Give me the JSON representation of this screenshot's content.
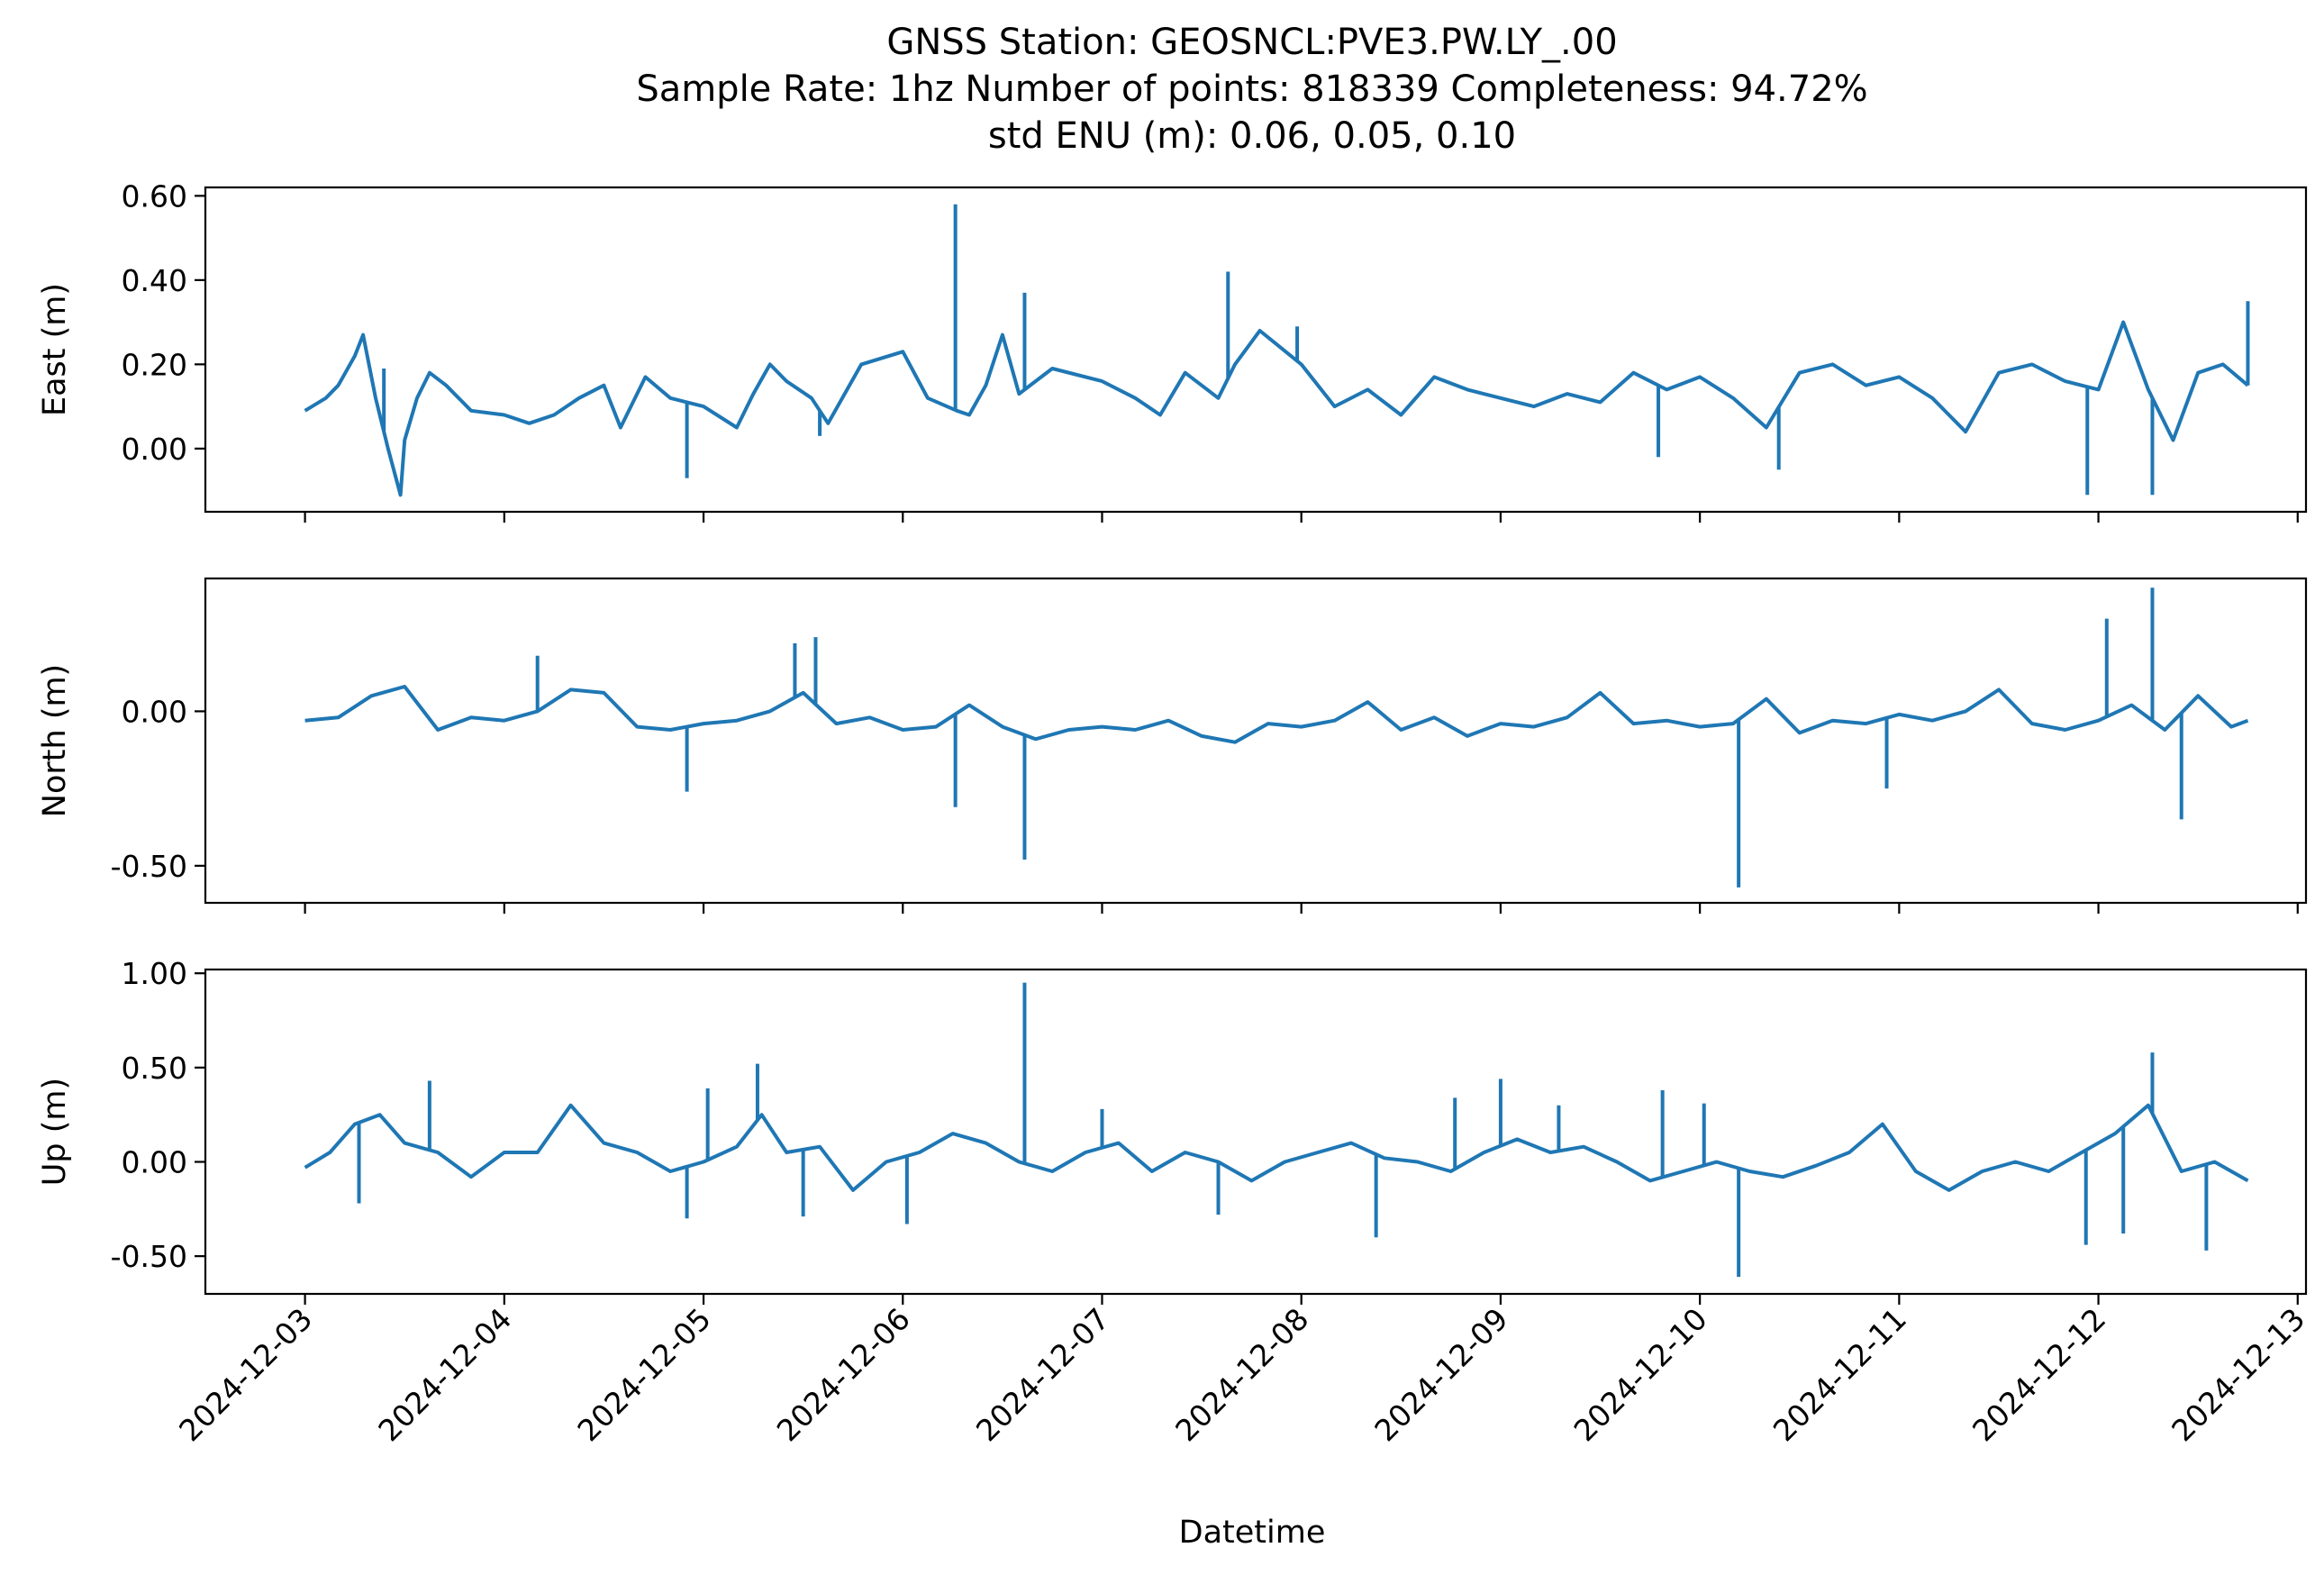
{
  "chart_data": {
    "type": "line",
    "title_lines": [
      "GNSS Station: GEOSNCL:PVE3.PW.LY_.00",
      "Sample Rate: 1hz   Number of points: 818339    Completeness:  94.72%",
      "std ENU (m):  0.06, 0.05, 0.10"
    ],
    "xlabel": "Datetime",
    "x_ticks": [
      "2024-12-03",
      "2024-12-04",
      "2024-12-05",
      "2024-12-06",
      "2024-12-07",
      "2024-12-08",
      "2024-12-09",
      "2024-12-10",
      "2024-12-11",
      "2024-12-12",
      "2024-12-13"
    ],
    "x_range": [
      "2024-12-02T12:00",
      "2024-12-13T01:00"
    ],
    "series_color": "#1f77b4",
    "panels": [
      {
        "ylabel": "East (m)",
        "ylim": [
          -0.15,
          0.62
        ],
        "yticks": [
          0.6,
          0.4,
          0.2,
          0.0
        ],
        "ytick_labels": [
          "0.60",
          "0.40",
          "0.20",
          "0.00"
        ],
        "x": [
          "2024-12-03T00:00",
          "2024-12-03T02:30",
          "2024-12-03T04:00",
          "2024-12-03T06:00",
          "2024-12-03T07:00",
          "2024-12-03T08:30",
          "2024-12-03T10:00",
          "2024-12-03T11:30",
          "2024-12-03T12:00",
          "2024-12-03T13:30",
          "2024-12-03T15:00",
          "2024-12-03T17:00",
          "2024-12-03T20:00",
          "2024-12-04T00:00",
          "2024-12-04T03:00",
          "2024-12-04T06:00",
          "2024-12-04T09:00",
          "2024-12-04T12:00",
          "2024-12-04T14:00",
          "2024-12-04T17:00",
          "2024-12-04T20:00",
          "2024-12-05T00:00",
          "2024-12-05T04:00",
          "2024-12-05T06:00",
          "2024-12-05T08:00",
          "2024-12-05T10:00",
          "2024-12-05T13:00",
          "2024-12-05T15:00",
          "2024-12-05T19:00",
          "2024-12-06T00:00",
          "2024-12-06T03:00",
          "2024-12-06T06:30",
          "2024-12-06T08:00",
          "2024-12-06T10:00",
          "2024-12-06T12:00",
          "2024-12-06T14:00",
          "2024-12-06T18:00",
          "2024-12-07T00:00",
          "2024-12-07T04:00",
          "2024-12-07T07:00",
          "2024-12-07T10:00",
          "2024-12-07T14:00",
          "2024-12-07T16:00",
          "2024-12-07T19:00",
          "2024-12-08T00:00",
          "2024-12-08T04:00",
          "2024-12-08T08:00",
          "2024-12-08T12:00",
          "2024-12-08T16:00",
          "2024-12-08T20:00",
          "2024-12-09T00:00",
          "2024-12-09T04:00",
          "2024-12-09T08:00",
          "2024-12-09T12:00",
          "2024-12-09T16:00",
          "2024-12-09T20:00",
          "2024-12-10T00:00",
          "2024-12-10T04:00",
          "2024-12-10T08:00",
          "2024-12-10T12:00",
          "2024-12-10T16:00",
          "2024-12-10T20:00",
          "2024-12-11T00:00",
          "2024-12-11T04:00",
          "2024-12-11T08:00",
          "2024-12-11T12:00",
          "2024-12-11T16:00",
          "2024-12-11T20:00",
          "2024-12-12T00:00",
          "2024-12-12T03:00",
          "2024-12-12T06:00",
          "2024-12-12T09:00",
          "2024-12-12T12:00",
          "2024-12-12T15:00",
          "2024-12-12T18:00"
        ],
        "values": [
          0.09,
          0.12,
          0.15,
          0.22,
          0.27,
          0.12,
          0.0,
          -0.11,
          0.02,
          0.12,
          0.18,
          0.15,
          0.09,
          0.08,
          0.06,
          0.08,
          0.12,
          0.15,
          0.05,
          0.17,
          0.12,
          0.1,
          0.05,
          0.13,
          0.2,
          0.16,
          0.12,
          0.06,
          0.2,
          0.23,
          0.12,
          0.09,
          0.08,
          0.15,
          0.27,
          0.13,
          0.19,
          0.16,
          0.12,
          0.08,
          0.18,
          0.12,
          0.2,
          0.28,
          0.2,
          0.1,
          0.14,
          0.08,
          0.17,
          0.14,
          0.12,
          0.1,
          0.13,
          0.11,
          0.18,
          0.14,
          0.17,
          0.12,
          0.05,
          0.18,
          0.2,
          0.15,
          0.17,
          0.12,
          0.04,
          0.18,
          0.2,
          0.16,
          0.14,
          0.3,
          0.14,
          0.02,
          0.18,
          0.2,
          0.15
        ],
        "spikes": [
          {
            "x": "2024-12-03T09:30",
            "y": 0.19
          },
          {
            "x": "2024-12-06T06:20",
            "y": 0.58
          },
          {
            "x": "2024-12-06T14:40",
            "y": 0.37
          },
          {
            "x": "2024-12-07T15:10",
            "y": 0.42
          },
          {
            "x": "2024-12-07T23:30",
            "y": 0.29
          },
          {
            "x": "2024-12-04T22:00",
            "y": -0.07
          },
          {
            "x": "2024-12-05T14:00",
            "y": 0.03
          },
          {
            "x": "2024-12-11T22:40",
            "y": -0.11
          },
          {
            "x": "2024-12-12T06:30",
            "y": -0.11
          },
          {
            "x": "2024-12-12T18:00",
            "y": 0.35
          },
          {
            "x": "2024-12-09T19:00",
            "y": -0.02
          },
          {
            "x": "2024-12-10T09:30",
            "y": -0.05
          }
        ]
      },
      {
        "ylabel": "North (m)",
        "ylim": [
          -0.62,
          0.43
        ],
        "yticks": [
          0.0,
          -0.5
        ],
        "ytick_labels": [
          "0.00",
          "-0.50"
        ],
        "x": [
          "2024-12-03T00:00",
          "2024-12-03T04:00",
          "2024-12-03T08:00",
          "2024-12-03T12:00",
          "2024-12-03T16:00",
          "2024-12-03T20:00",
          "2024-12-04T00:00",
          "2024-12-04T04:00",
          "2024-12-04T08:00",
          "2024-12-04T12:00",
          "2024-12-04T16:00",
          "2024-12-04T20:00",
          "2024-12-05T00:00",
          "2024-12-05T04:00",
          "2024-12-05T08:00",
          "2024-12-05T12:00",
          "2024-12-05T16:00",
          "2024-12-05T20:00",
          "2024-12-06T00:00",
          "2024-12-06T04:00",
          "2024-12-06T08:00",
          "2024-12-06T12:00",
          "2024-12-06T16:00",
          "2024-12-06T20:00",
          "2024-12-07T00:00",
          "2024-12-07T04:00",
          "2024-12-07T08:00",
          "2024-12-07T12:00",
          "2024-12-07T16:00",
          "2024-12-07T20:00",
          "2024-12-08T00:00",
          "2024-12-08T04:00",
          "2024-12-08T08:00",
          "2024-12-08T12:00",
          "2024-12-08T16:00",
          "2024-12-08T20:00",
          "2024-12-09T00:00",
          "2024-12-09T04:00",
          "2024-12-09T08:00",
          "2024-12-09T12:00",
          "2024-12-09T16:00",
          "2024-12-09T20:00",
          "2024-12-10T00:00",
          "2024-12-10T04:00",
          "2024-12-10T08:00",
          "2024-12-10T12:00",
          "2024-12-10T16:00",
          "2024-12-10T20:00",
          "2024-12-11T00:00",
          "2024-12-11T04:00",
          "2024-12-11T08:00",
          "2024-12-11T12:00",
          "2024-12-11T16:00",
          "2024-12-11T20:00",
          "2024-12-12T00:00",
          "2024-12-12T04:00",
          "2024-12-12T08:00",
          "2024-12-12T12:00",
          "2024-12-12T16:00",
          "2024-12-12T18:00"
        ],
        "values": [
          -0.03,
          -0.02,
          0.05,
          0.08,
          -0.06,
          -0.02,
          -0.03,
          0.0,
          0.07,
          0.06,
          -0.05,
          -0.06,
          -0.04,
          -0.03,
          0.0,
          0.06,
          -0.04,
          -0.02,
          -0.06,
          -0.05,
          0.02,
          -0.05,
          -0.09,
          -0.06,
          -0.05,
          -0.06,
          -0.03,
          -0.08,
          -0.1,
          -0.04,
          -0.05,
          -0.03,
          0.03,
          -0.06,
          -0.02,
          -0.08,
          -0.04,
          -0.05,
          -0.02,
          0.06,
          -0.04,
          -0.03,
          -0.05,
          -0.04,
          0.04,
          -0.07,
          -0.03,
          -0.04,
          -0.01,
          -0.03,
          0.0,
          0.07,
          -0.04,
          -0.06,
          -0.03,
          0.02,
          -0.06,
          0.05,
          -0.05,
          -0.03
        ],
        "spikes": [
          {
            "x": "2024-12-04T04:00",
            "y": 0.18
          },
          {
            "x": "2024-12-04T22:00",
            "y": -0.26
          },
          {
            "x": "2024-12-05T11:00",
            "y": 0.22
          },
          {
            "x": "2024-12-05T13:30",
            "y": 0.24
          },
          {
            "x": "2024-12-06T06:20",
            "y": -0.31
          },
          {
            "x": "2024-12-06T14:40",
            "y": -0.48
          },
          {
            "x": "2024-12-10T04:40",
            "y": -0.57
          },
          {
            "x": "2024-12-10T22:30",
            "y": -0.25
          },
          {
            "x": "2024-12-12T01:00",
            "y": 0.3
          },
          {
            "x": "2024-12-12T06:30",
            "y": 0.4
          },
          {
            "x": "2024-12-12T10:00",
            "y": -0.35
          }
        ]
      },
      {
        "ylabel": "Up (m)",
        "ylim": [
          -0.7,
          1.02
        ],
        "yticks": [
          1.0,
          0.5,
          0.0,
          -0.5
        ],
        "ytick_labels": [
          "1.00",
          "0.50",
          "0.00",
          "-0.50"
        ],
        "x": [
          "2024-12-03T00:00",
          "2024-12-03T03:00",
          "2024-12-03T06:00",
          "2024-12-03T09:00",
          "2024-12-03T12:00",
          "2024-12-03T16:00",
          "2024-12-03T20:00",
          "2024-12-04T00:00",
          "2024-12-04T04:00",
          "2024-12-04T08:00",
          "2024-12-04T12:00",
          "2024-12-04T16:00",
          "2024-12-04T20:00",
          "2024-12-05T00:00",
          "2024-12-05T04:00",
          "2024-12-05T07:00",
          "2024-12-05T10:00",
          "2024-12-05T14:00",
          "2024-12-05T18:00",
          "2024-12-05T22:00",
          "2024-12-06T02:00",
          "2024-12-06T06:00",
          "2024-12-06T10:00",
          "2024-12-06T14:00",
          "2024-12-06T18:00",
          "2024-12-06T22:00",
          "2024-12-07T02:00",
          "2024-12-07T06:00",
          "2024-12-07T10:00",
          "2024-12-07T14:00",
          "2024-12-07T18:00",
          "2024-12-07T22:00",
          "2024-12-08T02:00",
          "2024-12-08T06:00",
          "2024-12-08T10:00",
          "2024-12-08T14:00",
          "2024-12-08T18:00",
          "2024-12-08T22:00",
          "2024-12-09T02:00",
          "2024-12-09T06:00",
          "2024-12-09T10:00",
          "2024-12-09T14:00",
          "2024-12-09T18:00",
          "2024-12-09T22:00",
          "2024-12-10T02:00",
          "2024-12-10T06:00",
          "2024-12-10T10:00",
          "2024-12-10T14:00",
          "2024-12-10T18:00",
          "2024-12-10T22:00",
          "2024-12-11T02:00",
          "2024-12-11T06:00",
          "2024-12-11T10:00",
          "2024-12-11T14:00",
          "2024-12-11T18:00",
          "2024-12-11T22:00",
          "2024-12-12T02:00",
          "2024-12-12T06:00",
          "2024-12-12T10:00",
          "2024-12-12T14:00",
          "2024-12-12T18:00"
        ],
        "values": [
          -0.03,
          0.05,
          0.2,
          0.25,
          0.1,
          0.05,
          -0.08,
          0.05,
          0.05,
          0.3,
          0.1,
          0.05,
          -0.05,
          0.0,
          0.08,
          0.25,
          0.05,
          0.08,
          -0.15,
          0.0,
          0.05,
          0.15,
          0.1,
          0.0,
          -0.05,
          0.05,
          0.1,
          -0.05,
          0.05,
          0.0,
          -0.1,
          0.0,
          0.05,
          0.1,
          0.02,
          0.0,
          -0.05,
          0.05,
          0.12,
          0.05,
          0.08,
          0.0,
          -0.1,
          -0.05,
          0.0,
          -0.05,
          -0.08,
          -0.02,
          0.05,
          0.2,
          -0.05,
          -0.15,
          -0.05,
          0.0,
          -0.05,
          0.05,
          0.15,
          0.3,
          -0.05,
          0.0,
          -0.1
        ],
        "spikes": [
          {
            "x": "2024-12-03T06:30",
            "y": -0.22
          },
          {
            "x": "2024-12-03T15:00",
            "y": 0.43
          },
          {
            "x": "2024-12-04T22:00",
            "y": -0.3
          },
          {
            "x": "2024-12-05T00:30",
            "y": 0.39
          },
          {
            "x": "2024-12-05T06:30",
            "y": 0.52
          },
          {
            "x": "2024-12-05T12:00",
            "y": -0.29
          },
          {
            "x": "2024-12-06T00:30",
            "y": -0.33
          },
          {
            "x": "2024-12-06T14:40",
            "y": 0.95
          },
          {
            "x": "2024-12-07T00:00",
            "y": 0.28
          },
          {
            "x": "2024-12-07T14:00",
            "y": -0.28
          },
          {
            "x": "2024-12-08T09:00",
            "y": -0.4
          },
          {
            "x": "2024-12-08T18:30",
            "y": 0.34
          },
          {
            "x": "2024-12-09T00:00",
            "y": 0.44
          },
          {
            "x": "2024-12-09T07:00",
            "y": 0.3
          },
          {
            "x": "2024-12-09T19:30",
            "y": 0.38
          },
          {
            "x": "2024-12-10T00:30",
            "y": 0.31
          },
          {
            "x": "2024-12-10T04:40",
            "y": -0.61
          },
          {
            "x": "2024-12-11T22:30",
            "y": -0.44
          },
          {
            "x": "2024-12-12T03:00",
            "y": -0.38
          },
          {
            "x": "2024-12-12T06:30",
            "y": 0.58
          },
          {
            "x": "2024-12-12T13:00",
            "y": -0.47
          }
        ]
      }
    ]
  }
}
